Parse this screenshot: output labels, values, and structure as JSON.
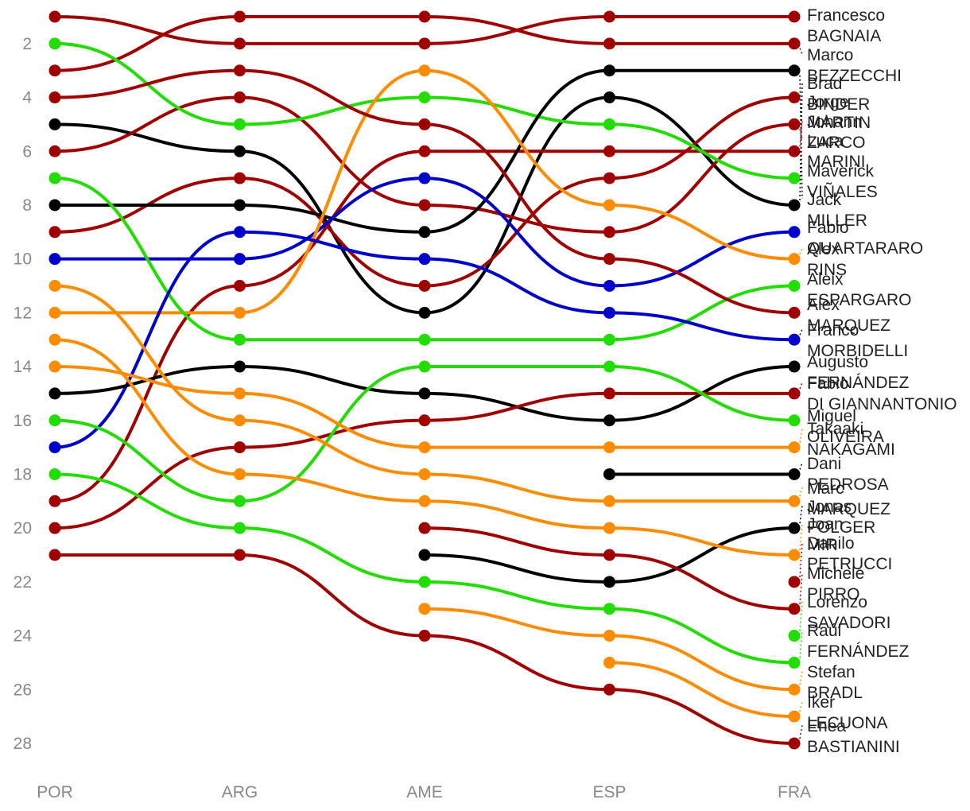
{
  "chart_data": {
    "type": "line",
    "subtype": "bump",
    "x": [
      "POR",
      "ARG",
      "AME",
      "ESP",
      "FRA"
    ],
    "y_axis": {
      "ticks": [
        2,
        4,
        6,
        8,
        10,
        12,
        14,
        16,
        18,
        20,
        22,
        24,
        26,
        28
      ],
      "reversed": true,
      "range": [
        1,
        28
      ]
    },
    "grid": false,
    "colors": {
      "red": "#a00000",
      "green": "#22dd00",
      "black": "#000000",
      "blue": "#0000cc",
      "orange": "#ff8c00"
    },
    "series": [
      {
        "name": "Francesco BAGNAIA",
        "color": "red",
        "ranks": [
          1,
          2,
          2,
          1,
          1
        ]
      },
      {
        "name": "Marco BEZZECCHI",
        "color": "red",
        "ranks": [
          3,
          1,
          1,
          2,
          2
        ]
      },
      {
        "name": "Brad BINDER",
        "color": "black",
        "ranks": [
          5,
          6,
          12,
          4,
          8
        ]
      },
      {
        "name": "Jorge MARTIN",
        "color": "red",
        "ranks": [
          9,
          7,
          11,
          7,
          4
        ]
      },
      {
        "name": "Johann ZARCO",
        "color": "red",
        "ranks": [
          19,
          11,
          6,
          6,
          6
        ]
      },
      {
        "name": "Luca MARINI",
        "color": "red",
        "ranks": [
          6,
          4,
          8,
          9,
          5
        ]
      },
      {
        "name": "Maverick VIÑALES",
        "color": "green",
        "ranks": [
          2,
          5,
          4,
          5,
          7
        ]
      },
      {
        "name": "Jack MILLER",
        "color": "black",
        "ranks": [
          8,
          8,
          9,
          3,
          3
        ]
      },
      {
        "name": "Fabio QUARTARARO",
        "color": "blue",
        "ranks": [
          10,
          10,
          7,
          11,
          9
        ]
      },
      {
        "name": "Alex RINS",
        "color": "orange",
        "ranks": [
          12,
          12,
          3,
          8,
          10
        ]
      },
      {
        "name": "Aleix ESPARGARO",
        "color": "green",
        "ranks": [
          7,
          13,
          13,
          13,
          11
        ]
      },
      {
        "name": "Alex MARQUEZ",
        "color": "red",
        "ranks": [
          4,
          3,
          5,
          10,
          12
        ]
      },
      {
        "name": "Franco MORBIDELLI",
        "color": "blue",
        "ranks": [
          17,
          9,
          10,
          12,
          13
        ]
      },
      {
        "name": "Augusto FERNÁNDEZ",
        "color": "black",
        "ranks": [
          15,
          14,
          15,
          16,
          14
        ]
      },
      {
        "name": "Fabio DI GIANNANTONIO",
        "color": "red",
        "ranks": [
          20,
          17,
          16,
          15,
          15
        ]
      },
      {
        "name": "Miguel OLIVEIRA",
        "color": "green",
        "ranks": [
          16,
          19,
          14,
          14,
          16
        ]
      },
      {
        "name": "Takaaki NAKAGAMI",
        "color": "orange",
        "ranks": [
          14,
          15,
          17,
          17,
          17
        ]
      },
      {
        "name": "Dani PEDROSA",
        "color": "black",
        "ranks": [
          null,
          null,
          null,
          18,
          18
        ]
      },
      {
        "name": "Marc MARQUEZ",
        "color": "orange",
        "ranks": [
          11,
          16,
          18,
          19,
          19
        ]
      },
      {
        "name": "Jonas FOLGER",
        "color": "black",
        "ranks": [
          null,
          null,
          21,
          22,
          20
        ]
      },
      {
        "name": "Joan MIR",
        "color": "orange",
        "ranks": [
          13,
          18,
          19,
          20,
          21
        ]
      },
      {
        "name": "Danilo PETRUCCI",
        "color": "red",
        "ranks": [
          null,
          null,
          null,
          null,
          22
        ]
      },
      {
        "name": "Michele PIRRO",
        "color": "red",
        "ranks": [
          null,
          null,
          20,
          21,
          23
        ]
      },
      {
        "name": "Lorenzo SAVADORI",
        "color": "green",
        "ranks": [
          null,
          null,
          null,
          null,
          24
        ]
      },
      {
        "name": "Raúl FERNÁNDEZ",
        "color": "green",
        "ranks": [
          18,
          20,
          22,
          23,
          25
        ]
      },
      {
        "name": "Stefan BRADL",
        "color": "orange",
        "ranks": [
          null,
          null,
          23,
          24,
          26
        ]
      },
      {
        "name": "Iker LECUONA",
        "color": "orange",
        "ranks": [
          null,
          null,
          null,
          25,
          27
        ]
      },
      {
        "name": "Enea BASTIANINI",
        "color": "red",
        "ranks": [
          21,
          21,
          24,
          26,
          28
        ]
      }
    ]
  }
}
